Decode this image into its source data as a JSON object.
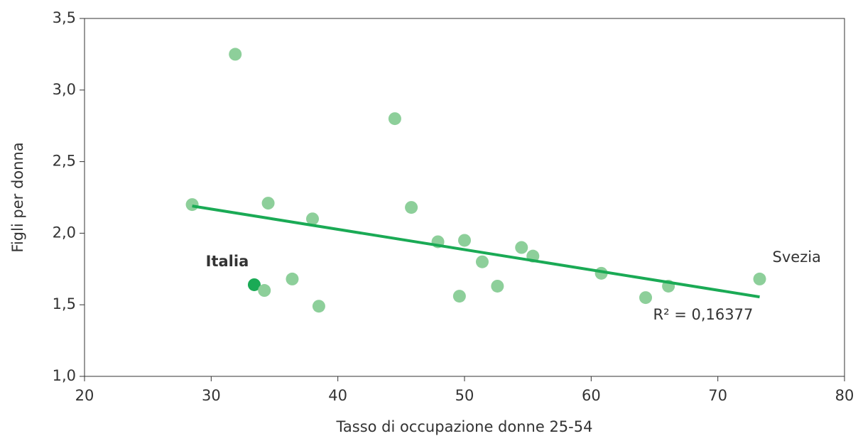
{
  "chart_data": {
    "type": "scatter",
    "x_label": "Tasso di occupazione donne 25-54",
    "y_label": "Figli per donna",
    "x": [
      28.5,
      31.9,
      33.4,
      34.2,
      34.5,
      36.4,
      38.0,
      38.5,
      44.5,
      45.8,
      47.9,
      49.6,
      50.0,
      51.4,
      52.6,
      54.5,
      55.4,
      60.8,
      64.3,
      66.1,
      73.3
    ],
    "values": [
      2.2,
      3.25,
      1.64,
      1.6,
      2.21,
      1.68,
      2.1,
      1.49,
      2.8,
      2.18,
      1.94,
      1.56,
      1.95,
      1.8,
      1.63,
      1.9,
      1.84,
      1.72,
      1.55,
      1.63,
      1.68
    ],
    "color": "#8dcf9a",
    "xlim": [
      20,
      80
    ],
    "xticks": [
      20,
      30,
      40,
      50,
      60,
      70,
      80
    ],
    "ylim": [
      1.0,
      3.5
    ],
    "yticks": [
      {
        "value": 1.0,
        "label": "1,0"
      },
      {
        "value": 1.5,
        "label": "1,5"
      },
      {
        "value": 2.0,
        "label": "2,0"
      },
      {
        "value": 2.5,
        "label": "2,5"
      },
      {
        "value": 3.0,
        "label": "3,0"
      },
      {
        "value": 3.5,
        "label": "3,5"
      }
    ],
    "annotations": [
      {
        "text": "Italia",
        "point": 2,
        "color": "#1aaa55",
        "bold": true
      },
      {
        "text": "Svezia",
        "point": 20
      }
    ],
    "trendline": {
      "x": [
        28.5,
        73.3
      ],
      "values": [
        2.19,
        1.555
      ],
      "color": "#1aaa55",
      "label": "R² = 0,16377"
    }
  }
}
